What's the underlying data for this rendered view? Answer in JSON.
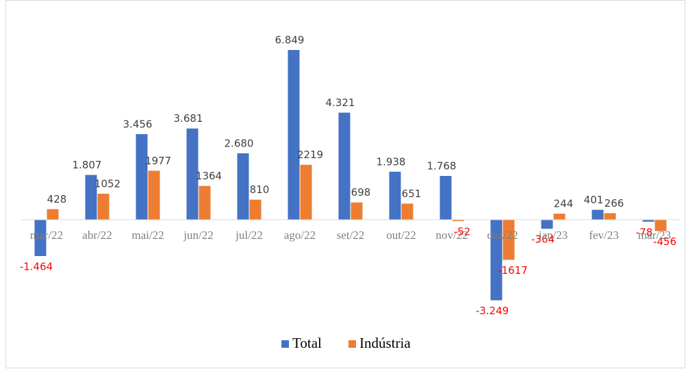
{
  "chart_data": {
    "type": "bar",
    "categories": [
      "mar/22",
      "abr/22",
      "mai/22",
      "jun/22",
      "jul/22",
      "ago/22",
      "set/22",
      "out/22",
      "nov/22",
      "dez/22",
      "jan/23",
      "fev/23",
      "mar/23"
    ],
    "series": [
      {
        "name": "Total",
        "color": "#4472c4",
        "values": [
          -1464,
          1807,
          3456,
          3681,
          2680,
          6849,
          4321,
          1938,
          1768,
          -3249,
          -364,
          401,
          -78
        ],
        "value_labels": [
          "-1.464",
          "1.807",
          "3.456",
          "3.681",
          "2.680",
          "6.849",
          "4.321",
          "1.938",
          "1.768",
          "-3.249",
          "-364",
          "401",
          "-78"
        ]
      },
      {
        "name": "Indústria",
        "color": "#ed7d31",
        "values": [
          428,
          1052,
          1977,
          1364,
          810,
          2219,
          698,
          651,
          -52,
          -1617,
          244,
          266,
          -456
        ]
      }
    ],
    "negative_label_color": "#ff0000",
    "legend": "bottom"
  }
}
